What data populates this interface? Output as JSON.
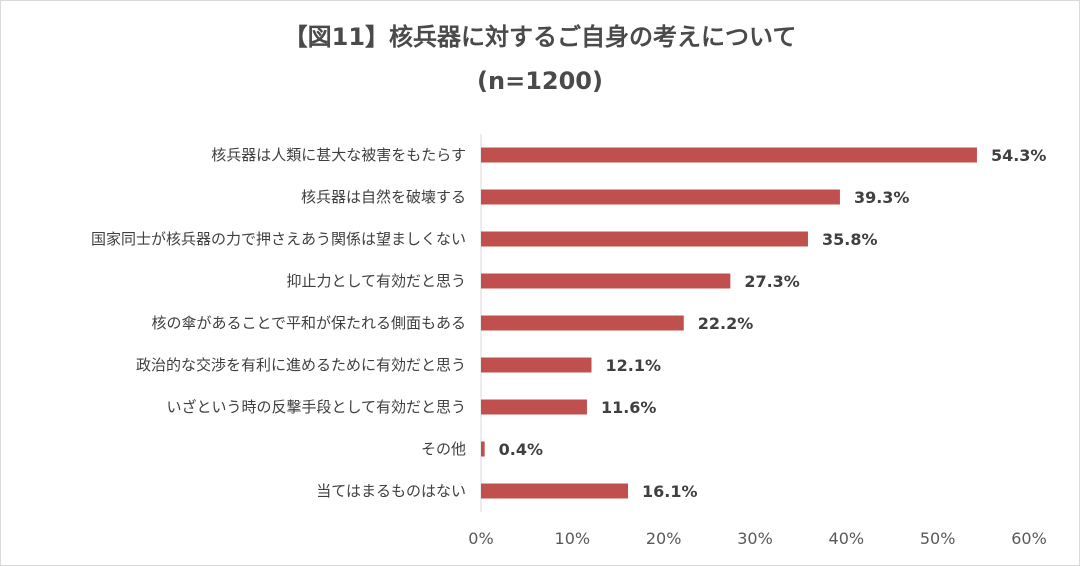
{
  "chart_data": {
    "type": "bar",
    "orientation": "horizontal",
    "title": "【図11】核兵器に対するご自身の考えについて",
    "subtitle": "(n=1200)",
    "categories": [
      "核兵器は人類に甚大な被害をもたらす",
      "核兵器は自然を破壊する",
      "国家同士が核兵器の力で押さえあう関係は望ましくない",
      "抑止力として有効だと思う",
      "核の傘があることで平和が保たれる側面もある",
      "政治的な交渉を有利に進めるために有効だと思う",
      "いざという時の反撃手段として有効だと思う",
      "その他",
      "当てはまるものはない"
    ],
    "values": [
      54.3,
      39.3,
      35.8,
      27.3,
      22.2,
      12.1,
      11.6,
      0.4,
      16.1
    ],
    "value_labels": [
      "54.3%",
      "39.3%",
      "35.8%",
      "27.3%",
      "22.2%",
      "12.1%",
      "11.6%",
      "0.4%",
      "16.1%"
    ],
    "xlim": [
      0,
      60
    ],
    "x_ticks": [
      "0%",
      "10%",
      "20%",
      "30%",
      "40%",
      "50%",
      "60%"
    ],
    "xlabel": "",
    "ylabel": "",
    "grid": false,
    "bar_color": "#c0504d"
  }
}
